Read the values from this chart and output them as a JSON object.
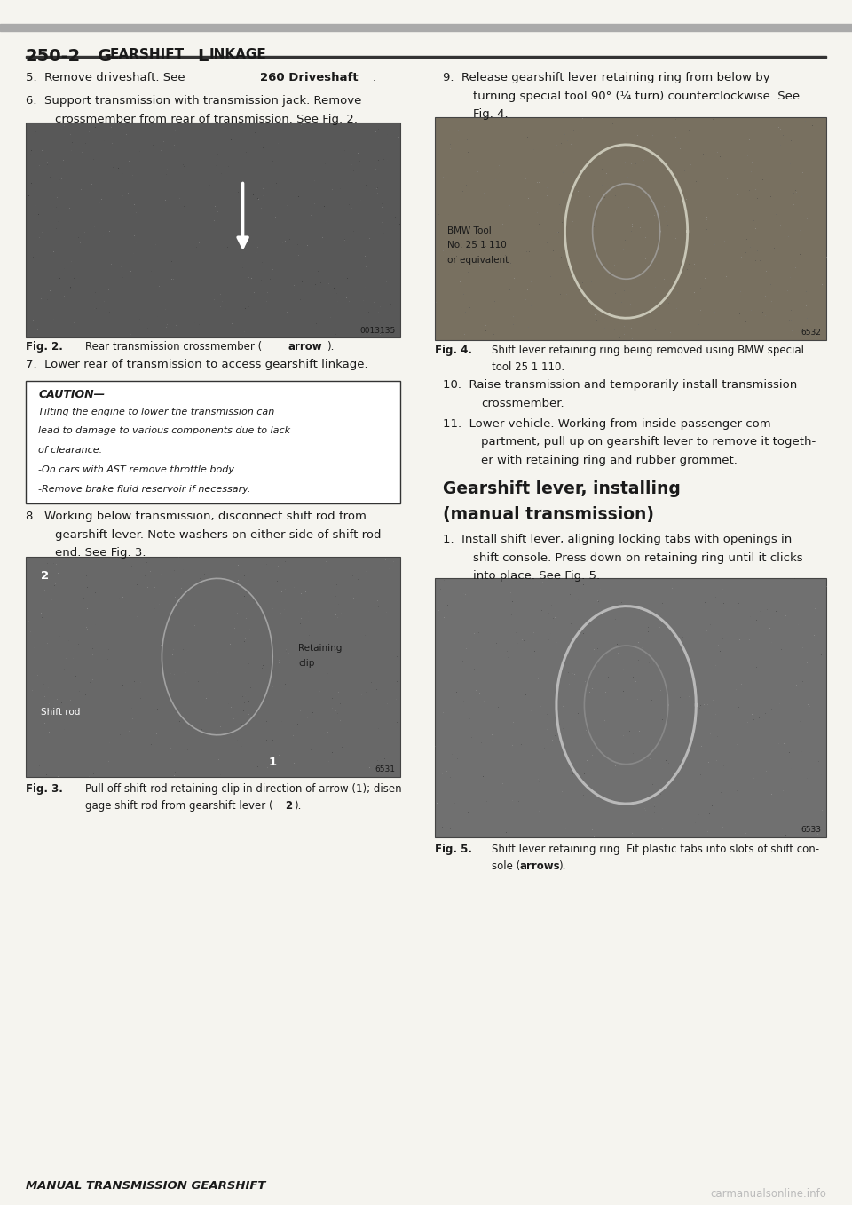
{
  "page_title": "250-2",
  "page_subtitle": "Gearshift Linkage",
  "bg_color": "#f5f4ef",
  "text_color": "#1a1a1a",
  "watermark": "carmanualsonline.info",
  "header_line_color": "#333333",
  "top_bar_color": "#aaaaaa",
  "caution_lines": [
    "Tilting the engine to lower the transmission can",
    "lead to damage to various components due to lack",
    "of clearance.",
    "-On cars with AST remove throttle body.",
    "-Remove brake fluid reservoir if necessary."
  ]
}
